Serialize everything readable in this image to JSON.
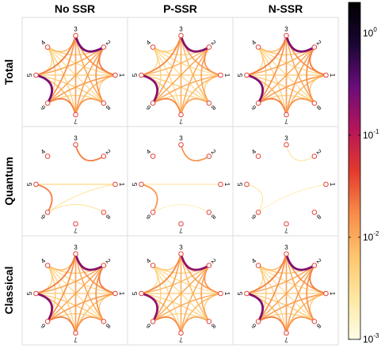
{
  "chart_data": {
    "type": "network-grid",
    "columns": [
      "No SSR",
      "P-SSR",
      "N-SSR"
    ],
    "rows": [
      "Total",
      "Quantum",
      "Classical"
    ],
    "node_labels": [
      "1",
      "2",
      "3",
      "4",
      "5",
      "6",
      "7",
      "8"
    ],
    "colorbar": {
      "scale": "log",
      "range": [
        0.001,
        2
      ],
      "ticks": [
        {
          "value": 1,
          "label": "10",
          "exp": "0"
        },
        {
          "value": 0.1,
          "label": "10",
          "exp": "-1"
        },
        {
          "value": 0.01,
          "label": "10",
          "exp": "-2"
        },
        {
          "value": 0.001,
          "label": "10",
          "exp": "-3"
        }
      ],
      "colors": [
        "#fffde8",
        "#fde7a0",
        "#fec46b",
        "#f78b48",
        "#e23a2d",
        "#b4155a",
        "#6a0d7a",
        "#1a0633",
        "#000000"
      ]
    },
    "panels": [
      {
        "row": "Total",
        "col": "No SSR",
        "edges": [
          [
            1,
            2,
            0.02
          ],
          [
            1,
            3,
            0.015
          ],
          [
            1,
            4,
            0.004
          ],
          [
            1,
            5,
            0.006
          ],
          [
            1,
            6,
            0.012
          ],
          [
            1,
            7,
            0.008
          ],
          [
            1,
            8,
            0.006
          ],
          [
            2,
            3,
            0.25
          ],
          [
            2,
            4,
            0.006
          ],
          [
            2,
            5,
            0.01
          ],
          [
            2,
            6,
            0.01
          ],
          [
            2,
            7,
            0.012
          ],
          [
            2,
            8,
            0.015
          ],
          [
            3,
            4,
            0.008
          ],
          [
            3,
            5,
            0.02
          ],
          [
            3,
            6,
            0.015
          ],
          [
            3,
            7,
            0.012
          ],
          [
            3,
            8,
            0.01
          ],
          [
            4,
            5,
            0.005
          ],
          [
            4,
            6,
            0.006
          ],
          [
            4,
            7,
            0.005
          ],
          [
            4,
            8,
            0.004
          ],
          [
            5,
            6,
            0.25
          ],
          [
            5,
            7,
            0.008
          ],
          [
            5,
            8,
            0.006
          ],
          [
            6,
            7,
            0.02
          ],
          [
            6,
            8,
            0.005
          ],
          [
            7,
            8,
            0.015
          ]
        ]
      },
      {
        "row": "Total",
        "col": "P-SSR",
        "edges": [
          [
            1,
            2,
            0.015
          ],
          [
            1,
            3,
            0.012
          ],
          [
            1,
            4,
            0.004
          ],
          [
            1,
            5,
            0.006
          ],
          [
            1,
            6,
            0.01
          ],
          [
            1,
            7,
            0.008
          ],
          [
            1,
            8,
            0.005
          ],
          [
            2,
            3,
            0.2
          ],
          [
            2,
            4,
            0.005
          ],
          [
            2,
            5,
            0.008
          ],
          [
            2,
            6,
            0.01
          ],
          [
            2,
            7,
            0.01
          ],
          [
            2,
            8,
            0.012
          ],
          [
            3,
            4,
            0.006
          ],
          [
            3,
            5,
            0.018
          ],
          [
            3,
            6,
            0.012
          ],
          [
            3,
            7,
            0.01
          ],
          [
            3,
            8,
            0.008
          ],
          [
            4,
            5,
            0.004
          ],
          [
            4,
            6,
            0.005
          ],
          [
            4,
            7,
            0.004
          ],
          [
            4,
            8,
            0.004
          ],
          [
            5,
            6,
            0.2
          ],
          [
            5,
            7,
            0.007
          ],
          [
            5,
            8,
            0.005
          ],
          [
            6,
            7,
            0.018
          ],
          [
            6,
            8,
            0.004
          ],
          [
            7,
            8,
            0.012
          ]
        ]
      },
      {
        "row": "Total",
        "col": "N-SSR",
        "edges": [
          [
            1,
            2,
            0.02
          ],
          [
            1,
            3,
            0.015
          ],
          [
            1,
            4,
            0.004
          ],
          [
            1,
            5,
            0.006
          ],
          [
            1,
            6,
            0.012
          ],
          [
            1,
            7,
            0.008
          ],
          [
            1,
            8,
            0.006
          ],
          [
            2,
            3,
            0.22
          ],
          [
            2,
            4,
            0.006
          ],
          [
            2,
            5,
            0.01
          ],
          [
            2,
            6,
            0.01
          ],
          [
            2,
            7,
            0.012
          ],
          [
            2,
            8,
            0.015
          ],
          [
            3,
            4,
            0.008
          ],
          [
            3,
            5,
            0.02
          ],
          [
            3,
            6,
            0.015
          ],
          [
            3,
            7,
            0.012
          ],
          [
            3,
            8,
            0.01
          ],
          [
            4,
            5,
            0.005
          ],
          [
            4,
            6,
            0.006
          ],
          [
            4,
            7,
            0.005
          ],
          [
            4,
            8,
            0.004
          ],
          [
            5,
            6,
            0.22
          ],
          [
            5,
            7,
            0.008
          ],
          [
            5,
            8,
            0.006
          ],
          [
            6,
            7,
            0.02
          ],
          [
            6,
            8,
            0.005
          ],
          [
            7,
            8,
            0.015
          ]
        ]
      },
      {
        "row": "Quantum",
        "col": "No SSR",
        "edges": [
          [
            2,
            3,
            0.02
          ],
          [
            5,
            6,
            0.02
          ],
          [
            1,
            5,
            0.004
          ],
          [
            6,
            8,
            0.003
          ],
          [
            1,
            6,
            0.003
          ]
        ]
      },
      {
        "row": "Quantum",
        "col": "P-SSR",
        "edges": [
          [
            2,
            3,
            0.015
          ],
          [
            5,
            6,
            0.015
          ],
          [
            1,
            5,
            0.003
          ],
          [
            6,
            8,
            0.002
          ]
        ]
      },
      {
        "row": "Quantum",
        "col": "N-SSR",
        "edges": [
          [
            2,
            3,
            0.003
          ],
          [
            5,
            6,
            0.003
          ],
          [
            1,
            6,
            0.002
          ]
        ]
      },
      {
        "row": "Classical",
        "col": "No SSR",
        "edges": [
          [
            1,
            2,
            0.02
          ],
          [
            1,
            3,
            0.015
          ],
          [
            1,
            4,
            0.004
          ],
          [
            1,
            5,
            0.006
          ],
          [
            1,
            6,
            0.012
          ],
          [
            1,
            7,
            0.008
          ],
          [
            1,
            8,
            0.006
          ],
          [
            2,
            3,
            0.2
          ],
          [
            2,
            4,
            0.006
          ],
          [
            2,
            5,
            0.01
          ],
          [
            2,
            6,
            0.01
          ],
          [
            2,
            7,
            0.012
          ],
          [
            2,
            8,
            0.015
          ],
          [
            3,
            4,
            0.008
          ],
          [
            3,
            5,
            0.02
          ],
          [
            3,
            6,
            0.015
          ],
          [
            3,
            7,
            0.012
          ],
          [
            3,
            8,
            0.01
          ],
          [
            4,
            5,
            0.005
          ],
          [
            4,
            6,
            0.006
          ],
          [
            4,
            7,
            0.005
          ],
          [
            4,
            8,
            0.004
          ],
          [
            5,
            6,
            0.2
          ],
          [
            5,
            7,
            0.008
          ],
          [
            5,
            8,
            0.006
          ],
          [
            6,
            7,
            0.02
          ],
          [
            6,
            8,
            0.005
          ],
          [
            7,
            8,
            0.015
          ]
        ]
      },
      {
        "row": "Classical",
        "col": "P-SSR",
        "edges": [
          [
            1,
            2,
            0.015
          ],
          [
            1,
            3,
            0.012
          ],
          [
            1,
            4,
            0.004
          ],
          [
            1,
            5,
            0.006
          ],
          [
            1,
            6,
            0.01
          ],
          [
            1,
            7,
            0.008
          ],
          [
            1,
            8,
            0.005
          ],
          [
            2,
            3,
            0.18
          ],
          [
            2,
            4,
            0.005
          ],
          [
            2,
            5,
            0.008
          ],
          [
            2,
            6,
            0.01
          ],
          [
            2,
            7,
            0.01
          ],
          [
            2,
            8,
            0.012
          ],
          [
            3,
            4,
            0.006
          ],
          [
            3,
            5,
            0.018
          ],
          [
            3,
            6,
            0.012
          ],
          [
            3,
            7,
            0.01
          ],
          [
            3,
            8,
            0.008
          ],
          [
            4,
            5,
            0.004
          ],
          [
            4,
            6,
            0.005
          ],
          [
            4,
            7,
            0.004
          ],
          [
            4,
            8,
            0.004
          ],
          [
            5,
            6,
            0.18
          ],
          [
            5,
            7,
            0.007
          ],
          [
            5,
            8,
            0.005
          ],
          [
            6,
            7,
            0.018
          ],
          [
            6,
            8,
            0.004
          ],
          [
            7,
            8,
            0.012
          ]
        ]
      },
      {
        "row": "Classical",
        "col": "N-SSR",
        "edges": [
          [
            1,
            2,
            0.02
          ],
          [
            1,
            3,
            0.015
          ],
          [
            1,
            4,
            0.004
          ],
          [
            1,
            5,
            0.006
          ],
          [
            1,
            6,
            0.012
          ],
          [
            1,
            7,
            0.008
          ],
          [
            1,
            8,
            0.006
          ],
          [
            2,
            3,
            0.22
          ],
          [
            2,
            4,
            0.006
          ],
          [
            2,
            5,
            0.01
          ],
          [
            2,
            6,
            0.01
          ],
          [
            2,
            7,
            0.012
          ],
          [
            2,
            8,
            0.015
          ],
          [
            3,
            4,
            0.008
          ],
          [
            3,
            5,
            0.02
          ],
          [
            3,
            6,
            0.015
          ],
          [
            3,
            7,
            0.012
          ],
          [
            3,
            8,
            0.01
          ],
          [
            4,
            5,
            0.005
          ],
          [
            4,
            6,
            0.006
          ],
          [
            4,
            7,
            0.005
          ],
          [
            4,
            8,
            0.004
          ],
          [
            5,
            6,
            0.22
          ],
          [
            5,
            7,
            0.008
          ],
          [
            5,
            8,
            0.006
          ],
          [
            6,
            7,
            0.02
          ],
          [
            6,
            8,
            0.005
          ],
          [
            7,
            8,
            0.015
          ]
        ]
      }
    ]
  }
}
